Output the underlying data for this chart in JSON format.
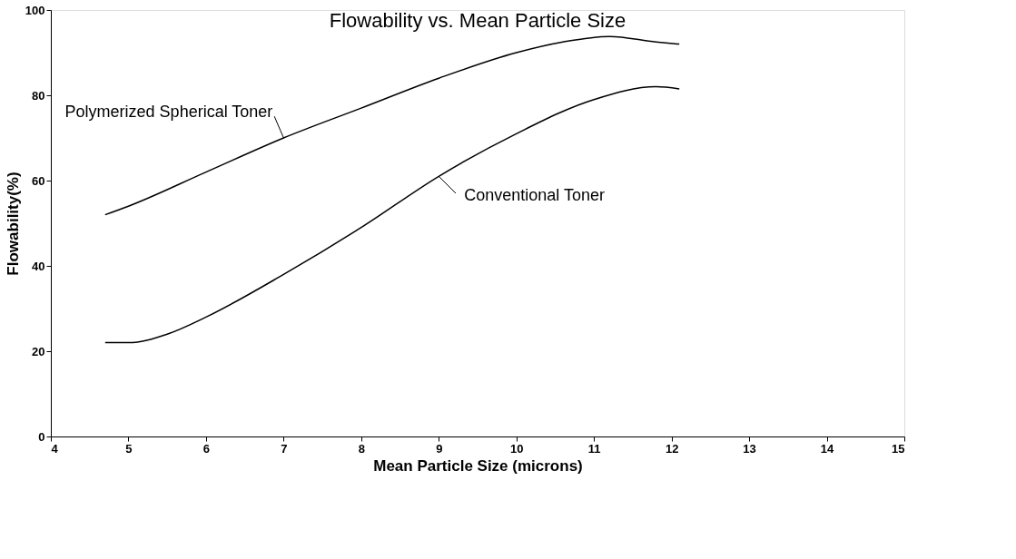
{
  "chart_data": {
    "type": "line",
    "title": "Flowability vs. Mean Particle Size",
    "xlabel": "Mean Particle Size (microns)",
    "ylabel": "Flowability(%)",
    "series": [
      {
        "name": "Polymerized Spherical Toner",
        "color": "#000000",
        "x": [
          4.7,
          5,
          6,
          7,
          8,
          9,
          10,
          10.6,
          11.2,
          11.8,
          12.1
        ],
        "values": [
          52,
          54,
          62,
          70,
          77,
          84,
          90,
          92.5,
          93.8,
          92.5,
          92
        ]
      },
      {
        "name": "Conventional Toner",
        "color": "#000000",
        "x": [
          4.7,
          5,
          5.5,
          6,
          7,
          8,
          9,
          10,
          11,
          11.8,
          12.1
        ],
        "values": [
          22,
          22,
          24,
          28,
          38,
          49,
          61,
          71,
          79,
          82,
          81.5
        ]
      }
    ],
    "xlim": [
      4,
      15
    ],
    "xticks": [
      4,
      5,
      6,
      7,
      8,
      9,
      10,
      11,
      12,
      13,
      14,
      15
    ],
    "ylim": [
      0,
      100
    ],
    "yticks": [
      0,
      20,
      40,
      60,
      80,
      100
    ],
    "grid": false,
    "marker": "none",
    "line_style": "solid"
  }
}
